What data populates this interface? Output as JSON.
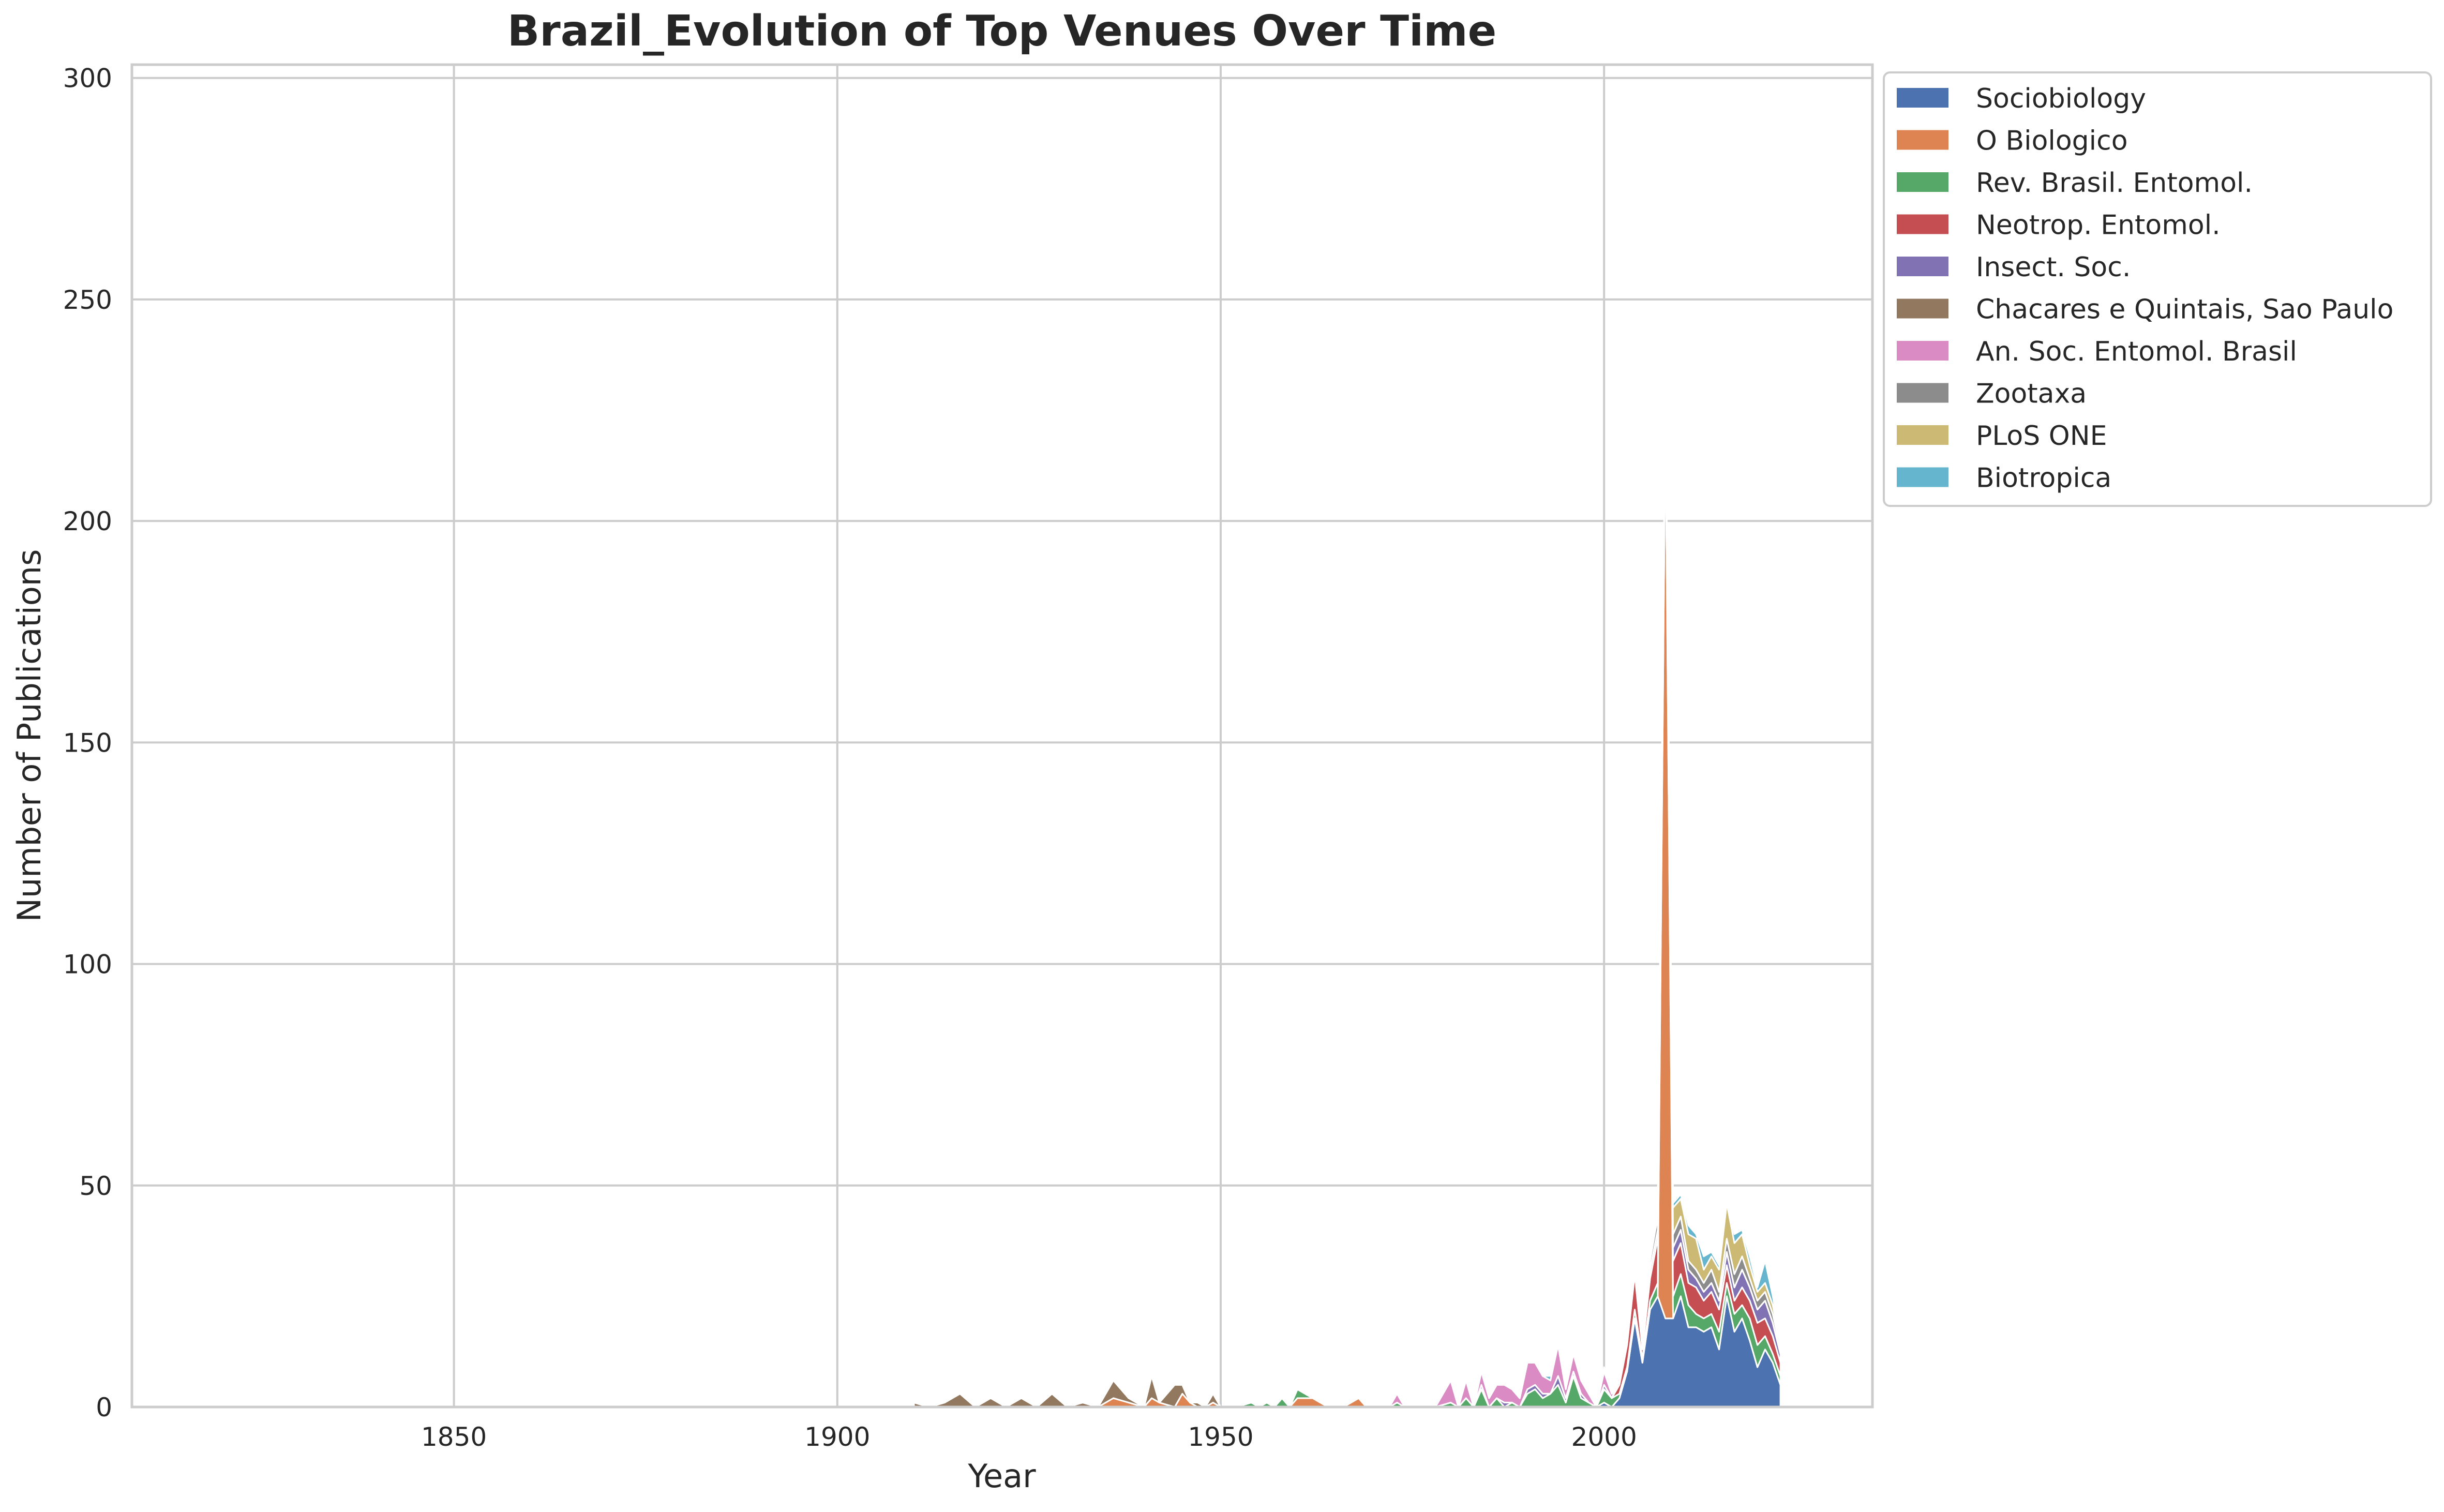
{
  "chart_data": {
    "type": "area",
    "stacked": true,
    "title": "Brazil_Evolution of Top Venues Over Time",
    "xlabel": "Year",
    "ylabel": "Number of Publications",
    "xlim": [
      1808,
      2035
    ],
    "ylim": [
      0,
      303
    ],
    "xticks": [
      1850,
      1900,
      1950,
      2000
    ],
    "yticks": [
      0,
      50,
      100,
      150,
      200,
      250,
      300
    ],
    "grid": true,
    "legend_position": "outside top-right",
    "x": [
      1910,
      1912,
      1914,
      1916,
      1918,
      1920,
      1922,
      1924,
      1926,
      1928,
      1930,
      1932,
      1934,
      1936,
      1938,
      1940,
      1941,
      1942,
      1944,
      1945,
      1946,
      1947,
      1948,
      1949,
      1950,
      1952,
      1954,
      1955,
      1956,
      1957,
      1958,
      1959,
      1960,
      1962,
      1964,
      1966,
      1968,
      1969,
      1970,
      1972,
      1973,
      1974,
      1976,
      1978,
      1980,
      1981,
      1982,
      1983,
      1984,
      1985,
      1986,
      1987,
      1988,
      1989,
      1990,
      1991,
      1992,
      1993,
      1994,
      1995,
      1996,
      1997,
      1998,
      1999,
      2000,
      2001,
      2002,
      2003,
      2004,
      2005,
      2006,
      2007,
      2008,
      2009,
      2010,
      2011,
      2012,
      2013,
      2014,
      2015,
      2016,
      2017,
      2018,
      2019,
      2020,
      2021,
      2022,
      2023
    ],
    "series": [
      {
        "name": "Sociobiology",
        "color": "#4c72b0",
        "values": [
          0,
          0,
          0,
          0,
          0,
          0,
          0,
          0,
          0,
          0,
          0,
          0,
          0,
          0,
          0,
          0,
          0,
          0,
          0,
          0,
          0,
          0,
          0,
          0,
          0,
          0,
          0,
          0,
          0,
          0,
          0,
          0,
          0,
          0,
          0,
          0,
          0,
          0,
          0,
          0,
          0,
          0,
          0,
          0,
          0,
          0,
          0,
          0,
          0,
          0,
          0,
          0,
          0,
          0,
          0,
          0,
          0,
          0,
          0,
          0,
          0,
          0,
          0,
          0,
          1,
          0,
          2,
          8,
          20,
          10,
          22,
          25,
          20,
          20,
          25,
          18,
          18,
          17,
          18,
          13,
          25,
          17,
          20,
          15,
          9,
          13,
          10,
          5
        ]
      },
      {
        "name": "O Biologico",
        "color": "#dd8452",
        "values": [
          0,
          0,
          0,
          0,
          0,
          0,
          0,
          0,
          0,
          0,
          0,
          0,
          0,
          2,
          1,
          0,
          2,
          1,
          0,
          3,
          1,
          0,
          0,
          1,
          0,
          0,
          0,
          0,
          0,
          0,
          0,
          0,
          2,
          2,
          0,
          0,
          2,
          0,
          0,
          0,
          0,
          0,
          0,
          0,
          0,
          0,
          0,
          0,
          0,
          0,
          0,
          0,
          0,
          0,
          0,
          0,
          0,
          0,
          0,
          0,
          0,
          0,
          0,
          0,
          0,
          0,
          0,
          0,
          0,
          0,
          0,
          0,
          203,
          0,
          0,
          0,
          0,
          0,
          0,
          0,
          0,
          0,
          0,
          0,
          0,
          0,
          0,
          0
        ]
      },
      {
        "name": "Rev. Brasil. Entomol.",
        "color": "#55a868",
        "values": [
          0,
          0,
          0,
          0,
          0,
          0,
          0,
          0,
          0,
          0,
          0,
          0,
          0,
          0,
          0,
          0,
          0,
          0,
          0,
          0,
          0,
          0,
          0,
          0,
          0,
          0,
          1,
          0,
          1,
          0,
          2,
          0,
          2,
          0,
          0,
          0,
          0,
          0,
          0,
          0,
          1,
          0,
          0,
          0,
          1,
          0,
          2,
          0,
          4,
          0,
          2,
          0,
          1,
          0,
          3,
          4,
          2,
          3,
          5,
          1,
          7,
          2,
          1,
          0,
          3,
          2,
          1,
          1,
          2,
          1,
          2,
          3,
          3,
          5,
          5,
          5,
          3,
          3,
          3,
          4,
          3,
          4,
          3,
          5,
          5,
          3,
          2,
          2
        ]
      },
      {
        "name": "Neotrop. Entomol.",
        "color": "#c44e52",
        "values": [
          0,
          0,
          0,
          0,
          0,
          0,
          0,
          0,
          0,
          0,
          0,
          0,
          0,
          0,
          0,
          0,
          0,
          0,
          0,
          0,
          0,
          0,
          0,
          0,
          0,
          0,
          0,
          0,
          0,
          0,
          0,
          0,
          0,
          0,
          0,
          0,
          0,
          0,
          0,
          0,
          0,
          0,
          0,
          0,
          0,
          0,
          0,
          0,
          0,
          0,
          0,
          0,
          0,
          0,
          0,
          0,
          0,
          0,
          0,
          0,
          0,
          0,
          0,
          0,
          0,
          0,
          2,
          5,
          8,
          2,
          5,
          10,
          0,
          8,
          7,
          5,
          6,
          4,
          5,
          5,
          4,
          3,
          4,
          4,
          5,
          4,
          4,
          3
        ]
      },
      {
        "name": "Insect. Soc.",
        "color": "#8172b3",
        "values": [
          0,
          0,
          0,
          0,
          0,
          0,
          0,
          0,
          0,
          0,
          0,
          0,
          0,
          0,
          0,
          0,
          0,
          0,
          0,
          0,
          0,
          0,
          0,
          0,
          0,
          0,
          0,
          0,
          0,
          0,
          0,
          0,
          0,
          0,
          0,
          0,
          0,
          0,
          0,
          0,
          0,
          0,
          0,
          0,
          0,
          0,
          0,
          0,
          1,
          0,
          0,
          1,
          0,
          0,
          1,
          1,
          1,
          0,
          2,
          1,
          1,
          1,
          0,
          0,
          1,
          0,
          1,
          2,
          2,
          1,
          2,
          2,
          2,
          3,
          3,
          3,
          2,
          2,
          2,
          2,
          3,
          3,
          4,
          3,
          3,
          4,
          3,
          2
        ]
      },
      {
        "name": "Chacares e Quintais, Sao Paulo",
        "color": "#937860",
        "values": [
          1,
          0,
          1,
          3,
          0,
          2,
          0,
          2,
          0,
          3,
          0,
          1,
          0,
          4,
          1,
          0,
          5,
          0,
          5,
          2,
          0,
          1,
          0,
          2,
          0,
          0,
          0,
          0,
          0,
          0,
          0,
          0,
          0,
          0,
          0,
          0,
          0,
          0,
          0,
          0,
          0,
          0,
          0,
          0,
          0,
          0,
          0,
          0,
          0,
          0,
          0,
          0,
          0,
          0,
          0,
          0,
          0,
          0,
          0,
          0,
          0,
          0,
          0,
          0,
          0,
          0,
          0,
          0,
          0,
          0,
          0,
          0,
          0,
          0,
          0,
          0,
          0,
          0,
          0,
          0,
          0,
          0,
          0,
          0,
          0,
          0,
          0,
          0
        ]
      },
      {
        "name": "An. Soc. Entomol. Brasil",
        "color": "#da8bc3",
        "values": [
          0,
          0,
          0,
          0,
          0,
          0,
          0,
          0,
          0,
          0,
          0,
          0,
          0,
          0,
          0,
          0,
          0,
          0,
          0,
          0,
          0,
          0,
          0,
          0,
          0,
          0,
          0,
          0,
          0,
          0,
          0,
          0,
          0,
          0,
          0,
          0,
          0,
          0,
          0,
          0,
          2,
          0,
          0,
          0,
          5,
          0,
          4,
          0,
          3,
          2,
          3,
          4,
          3,
          2,
          6,
          5,
          4,
          3,
          7,
          2,
          4,
          3,
          2,
          0,
          3,
          1,
          0,
          0,
          0,
          0,
          0,
          0,
          0,
          0,
          0,
          0,
          0,
          0,
          0,
          0,
          0,
          0,
          0,
          0,
          0,
          0,
          0,
          0
        ]
      },
      {
        "name": "Zootaxa",
        "color": "#8c8c8c",
        "values": [
          0,
          0,
          0,
          0,
          0,
          0,
          0,
          0,
          0,
          0,
          0,
          0,
          0,
          0,
          0,
          0,
          0,
          0,
          0,
          0,
          0,
          0,
          0,
          0,
          0,
          0,
          0,
          0,
          0,
          0,
          0,
          0,
          0,
          0,
          0,
          0,
          0,
          0,
          0,
          0,
          0,
          0,
          0,
          0,
          0,
          0,
          0,
          0,
          0,
          0,
          0,
          0,
          0,
          0,
          0,
          0,
          0,
          0,
          0,
          0,
          0,
          0,
          0,
          0,
          0,
          0,
          1,
          2,
          2,
          1,
          2,
          3,
          3,
          3,
          3,
          2,
          2,
          2,
          3,
          2,
          3,
          3,
          3,
          2,
          2,
          2,
          2,
          1
        ]
      },
      {
        "name": "PLoS ONE",
        "color": "#ccb974",
        "values": [
          0,
          0,
          0,
          0,
          0,
          0,
          0,
          0,
          0,
          0,
          0,
          0,
          0,
          0,
          0,
          0,
          0,
          0,
          0,
          0,
          0,
          0,
          0,
          0,
          0,
          0,
          0,
          0,
          0,
          0,
          0,
          0,
          0,
          0,
          0,
          0,
          0,
          0,
          0,
          0,
          0,
          0,
          0,
          0,
          0,
          0,
          0,
          0,
          0,
          0,
          0,
          0,
          0,
          0,
          0,
          0,
          0,
          0,
          0,
          0,
          0,
          0,
          0,
          0,
          0,
          0,
          0,
          0,
          0,
          1,
          1,
          2,
          2,
          6,
          4,
          6,
          7,
          3,
          3,
          5,
          8,
          7,
          5,
          3,
          2,
          2,
          2,
          1
        ]
      },
      {
        "name": "Biotropica",
        "color": "#64b5cd",
        "values": [
          0,
          0,
          0,
          0,
          0,
          0,
          0,
          0,
          0,
          0,
          0,
          0,
          0,
          0,
          0,
          0,
          0,
          0,
          0,
          0,
          0,
          0,
          0,
          0,
          0,
          0,
          0,
          0,
          0,
          0,
          0,
          0,
          0,
          0,
          0,
          0,
          0,
          0,
          0,
          0,
          0,
          0,
          0,
          0,
          0,
          0,
          0,
          0,
          0,
          0,
          0,
          0,
          0,
          0,
          0,
          0,
          0,
          1,
          0,
          0,
          1,
          0,
          0,
          0,
          1,
          0,
          1,
          1,
          1,
          0,
          1,
          1,
          1,
          1,
          1,
          2,
          1,
          3,
          1,
          1,
          1,
          2,
          1,
          2,
          1,
          5,
          2,
          1
        ]
      }
    ]
  }
}
